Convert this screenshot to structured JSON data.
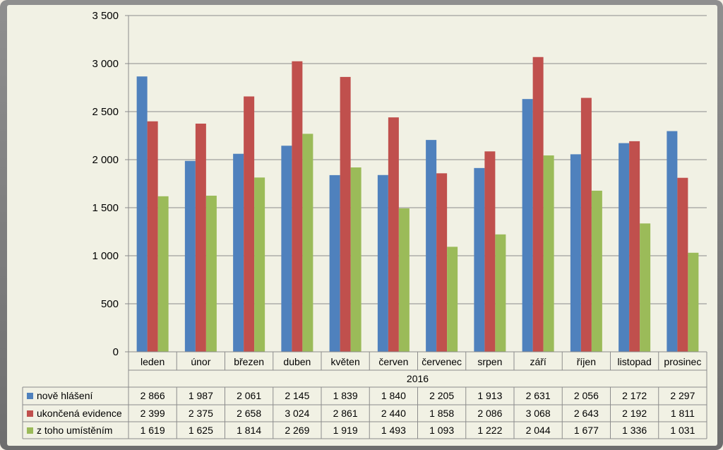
{
  "chart_data": {
    "type": "bar",
    "categories": [
      "leden",
      "únor",
      "březen",
      "duben",
      "květen",
      "červen",
      "červenec",
      "srpen",
      "září",
      "říjen",
      "listopad",
      "prosinec"
    ],
    "group_label": "2016",
    "series": [
      {
        "name": "nově hlášení",
        "color": "#4f81bd",
        "values": [
          2866,
          1987,
          2061,
          2145,
          1839,
          1840,
          2205,
          1913,
          2631,
          2056,
          2172,
          2297
        ],
        "labels": [
          "2 866",
          "1 987",
          "2 061",
          "2 145",
          "1 839",
          "1 840",
          "2 205",
          "1 913",
          "2 631",
          "2 056",
          "2 172",
          "2 297"
        ]
      },
      {
        "name": "ukončená evidence",
        "color": "#c0504d",
        "values": [
          2399,
          2375,
          2658,
          3024,
          2861,
          2440,
          1858,
          2086,
          3068,
          2643,
          2192,
          1811
        ],
        "labels": [
          "2 399",
          "2 375",
          "2 658",
          "3 024",
          "2 861",
          "2 440",
          "1 858",
          "2 086",
          "3 068",
          "2 643",
          "2 192",
          "1 811"
        ]
      },
      {
        "name": "z toho umístěním",
        "color": "#9bbb59",
        "values": [
          1619,
          1625,
          1814,
          2269,
          1919,
          1493,
          1093,
          1222,
          2044,
          1677,
          1336,
          1031
        ],
        "labels": [
          "1 619",
          "1 625",
          "1 814",
          "2 269",
          "1 919",
          "1 493",
          "1 093",
          "1 222",
          "2 044",
          "1 677",
          "1 336",
          "1 031"
        ]
      }
    ],
    "ylim": [
      0,
      3500
    ],
    "yticks": [
      0,
      500,
      1000,
      1500,
      2000,
      2500,
      3000,
      3500
    ],
    "ytick_labels": [
      "0",
      "500",
      "1 000",
      "1 500",
      "2 000",
      "2 500",
      "3 000",
      "3 500"
    ],
    "grid": true,
    "legend_placement": "data-table",
    "xlabel": "",
    "ylabel": "",
    "title": ""
  }
}
